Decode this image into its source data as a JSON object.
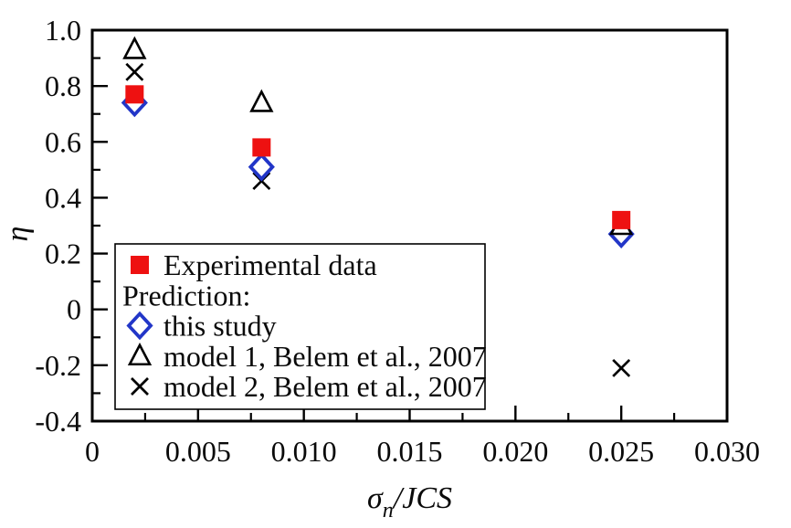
{
  "figure": {
    "background": "#ffffff",
    "frame_color": "#000000"
  },
  "chart_data": {
    "type": "scatter",
    "title": "",
    "xlabel": {
      "sigma": "σ",
      "sub": "n",
      "rest": "/JCS"
    },
    "ylabel": "η",
    "xlim": [
      0,
      0.03
    ],
    "ylim": [
      -0.4,
      1.0
    ],
    "grid": false,
    "frame": true,
    "x_major_ticks": [
      {
        "v": 0,
        "label": "0"
      },
      {
        "v": 0.005,
        "label": "0.005"
      },
      {
        "v": 0.01,
        "label": "0.010"
      },
      {
        "v": 0.015,
        "label": "0.015"
      },
      {
        "v": 0.02,
        "label": "0.020"
      },
      {
        "v": 0.025,
        "label": "0.025"
      },
      {
        "v": 0.03,
        "label": "0.030"
      }
    ],
    "x_minor_step": 0.0025,
    "y_major_ticks": [
      {
        "v": 1.0,
        "label": "1.0"
      },
      {
        "v": 0.8,
        "label": "0.8"
      },
      {
        "v": 0.6,
        "label": "0.6"
      },
      {
        "v": 0.4,
        "label": "0.4"
      },
      {
        "v": 0.2,
        "label": "0.2"
      },
      {
        "v": 0,
        "label": "0"
      },
      {
        "v": -0.2,
        "label": "-0.2"
      },
      {
        "v": -0.4,
        "label": "-0.4"
      }
    ],
    "y_minor_step": 0.1,
    "x": [
      0.002,
      0.008,
      0.025
    ],
    "series": [
      {
        "name": "Experimental data",
        "marker": "square-filled",
        "color": "#ee1111",
        "values": [
          0.77,
          0.58,
          0.32
        ]
      },
      {
        "name": "this study",
        "marker": "diamond-open",
        "color": "#2236c8",
        "values": [
          0.74,
          0.51,
          0.27
        ]
      },
      {
        "name": "model 1, Belem et al., 2007",
        "marker": "triangle-open",
        "color": "#000000",
        "values": [
          0.93,
          0.74,
          0.3
        ]
      },
      {
        "name": "model 2, Belem et al., 2007",
        "marker": "x-cross",
        "color": "#000000",
        "values": [
          0.85,
          0.46,
          -0.21
        ]
      }
    ],
    "draw_order": [
      3,
      1,
      2,
      0
    ],
    "legend": {
      "position": "inside-lower-left",
      "rows": [
        {
          "type": "series",
          "series": 0,
          "label": "Experimental data"
        },
        {
          "type": "header",
          "label": "Prediction:"
        },
        {
          "type": "series",
          "series": 1,
          "label": "this study"
        },
        {
          "type": "series",
          "series": 2,
          "label": "model 1, Belem et al., 2007"
        },
        {
          "type": "series",
          "series": 3,
          "label": "model 2, Belem et al., 2007"
        }
      ]
    }
  }
}
